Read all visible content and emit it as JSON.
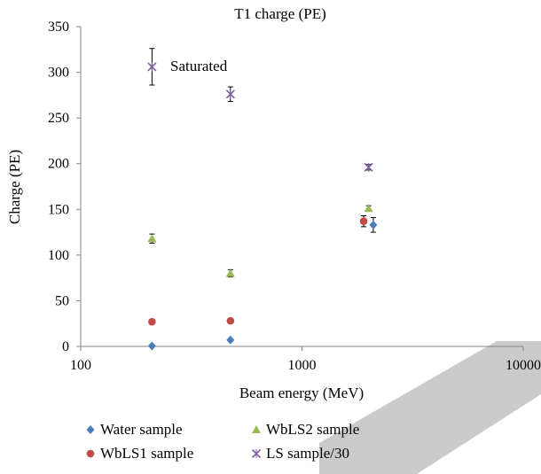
{
  "chart_data": {
    "type": "scatter",
    "title": "T1 charge (PE)",
    "xlabel": "Beam energy (MeV)",
    "ylabel": "Charge (PE)",
    "x_scale": "log",
    "xlim": [
      100,
      10000
    ],
    "ylim": [
      0,
      350
    ],
    "x_ticks": [
      "100",
      "1000",
      "10000"
    ],
    "y_ticks": [
      "0",
      "50",
      "100",
      "150",
      "200",
      "250",
      "300",
      "350"
    ],
    "legend_position": "bottom",
    "annotation": "Saturated",
    "series": [
      {
        "name": "Water sample",
        "marker": "diamond",
        "color": "#4a7ebb",
        "points": [
          {
            "x": 210,
            "y": 0.5,
            "err": 0
          },
          {
            "x": 475,
            "y": 7,
            "err": 0
          },
          {
            "x": 2100,
            "y": 133,
            "err": 8
          }
        ]
      },
      {
        "name": "WbLS1 sample",
        "marker": "circle",
        "color": "#be4b48",
        "points": [
          {
            "x": 210,
            "y": 27,
            "err": 0
          },
          {
            "x": 475,
            "y": 28,
            "err": 0
          },
          {
            "x": 1900,
            "y": 137,
            "err": 6
          }
        ]
      },
      {
        "name": "WbLS2 sample",
        "marker": "triangle",
        "color": "#98b954",
        "points": [
          {
            "x": 210,
            "y": 118,
            "err": 5
          },
          {
            "x": 475,
            "y": 80,
            "err": 4
          },
          {
            "x": 2000,
            "y": 151,
            "err": 3
          }
        ]
      },
      {
        "name": "LS sample/30",
        "marker": "x",
        "color": "#7d60a0",
        "points": [
          {
            "x": 210,
            "y": 306,
            "err": 20
          },
          {
            "x": 475,
            "y": 276,
            "err": 8
          },
          {
            "x": 2000,
            "y": 196,
            "err": 3
          }
        ]
      }
    ]
  }
}
